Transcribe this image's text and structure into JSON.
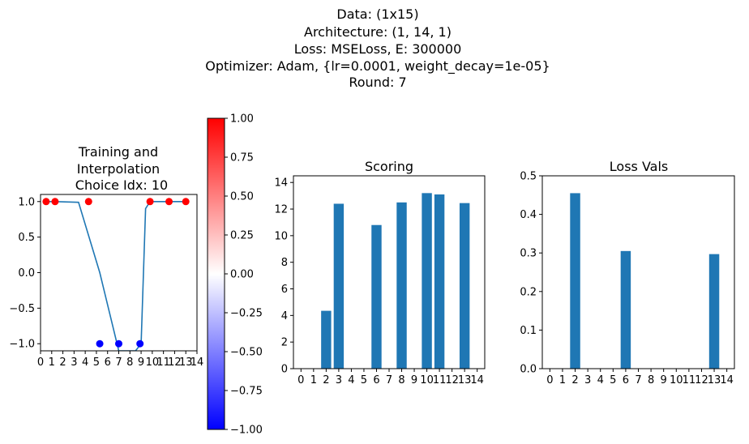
{
  "suptitle": [
    "Data: (1x15)",
    "Architecture: (1, 14, 1)",
    "Loss: MSELoss, E: 300000",
    "Optimizer: Adam, {lr=0.0001, weight_decay=1e-05}",
    "Round: 7"
  ],
  "colors": {
    "bar": "#1f77b4",
    "line": "#1f77b4",
    "cmap_low": "#0000ff",
    "cmap_mid": "#ffffff",
    "cmap_high": "#ff0000"
  },
  "chart_data": [
    {
      "type": "scatter",
      "title": [
        "Training and",
        "Interpolation",
        "Choice Idx: 10"
      ],
      "xlabel": "",
      "ylabel": "",
      "xlim": [
        0,
        14
      ],
      "ylim": [
        -1.1,
        1.1
      ],
      "xticks": [
        "0",
        "1",
        "2",
        "3",
        "4",
        "5",
        "6",
        "7",
        "8",
        "9",
        "10",
        "11",
        "12",
        "13",
        "14"
      ],
      "yticks": [
        "−1.0",
        "−0.5",
        "0.0",
        "0.5",
        "1.0"
      ],
      "ytick_values": [
        -1.0,
        -0.5,
        0.0,
        0.5,
        1.0
      ],
      "points": [
        {
          "x": 0.5,
          "y": 1.0
        },
        {
          "x": 1.3,
          "y": 1.0
        },
        {
          "x": 4.3,
          "y": 1.0
        },
        {
          "x": 5.3,
          "y": -1.0
        },
        {
          "x": 7.0,
          "y": -1.0
        },
        {
          "x": 8.9,
          "y": -1.0
        },
        {
          "x": 9.8,
          "y": 1.0
        },
        {
          "x": 11.5,
          "y": 1.0
        },
        {
          "x": 13.0,
          "y": 1.0
        }
      ],
      "line": {
        "x": [
          0.5,
          1.3,
          3.4,
          5.3,
          7.0,
          8.5,
          9.0,
          9.4,
          9.8,
          11.5,
          13.0
        ],
        "y": [
          1.0,
          1.0,
          0.99,
          0.0,
          -1.1,
          -1.1,
          -1.0,
          0.9,
          1.0,
          1.0,
          1.0
        ]
      },
      "grid": false,
      "colorbar": {
        "range": [
          -1.0,
          1.0
        ],
        "ticks": [
          "−1.00",
          "−0.75",
          "−0.50",
          "−0.25",
          "0.00",
          "0.25",
          "0.50",
          "0.75",
          "1.00"
        ],
        "tick_values": [
          -1.0,
          -0.75,
          -0.5,
          -0.25,
          0.0,
          0.25,
          0.5,
          0.75,
          1.0
        ]
      }
    },
    {
      "type": "bar",
      "title": "Scoring",
      "xlabel": "",
      "ylabel": "",
      "categories": [
        "0",
        "1",
        "2",
        "3",
        "4",
        "5",
        "6",
        "7",
        "8",
        "9",
        "10",
        "11",
        "12",
        "13",
        "14"
      ],
      "values": [
        0,
        0,
        4.35,
        12.4,
        0,
        0,
        10.8,
        0,
        12.5,
        0,
        13.2,
        13.1,
        0,
        12.45,
        0
      ],
      "ylim": [
        0,
        14.5
      ],
      "yticks": [
        "0",
        "2",
        "4",
        "6",
        "8",
        "10",
        "12",
        "14"
      ],
      "ytick_values": [
        0,
        2,
        4,
        6,
        8,
        10,
        12,
        14
      ],
      "grid": false
    },
    {
      "type": "bar",
      "title": "Loss Vals",
      "xlabel": "",
      "ylabel": "",
      "categories": [
        "0",
        "1",
        "2",
        "3",
        "4",
        "5",
        "6",
        "7",
        "8",
        "9",
        "10",
        "11",
        "12",
        "13",
        "14"
      ],
      "values": [
        0,
        0,
        0.455,
        0,
        0,
        0,
        0.305,
        0,
        0,
        0,
        0,
        0,
        0,
        0.297,
        0
      ],
      "ylim": [
        0,
        0.5
      ],
      "yticks": [
        "0.0",
        "0.1",
        "0.2",
        "0.3",
        "0.4",
        "0.5"
      ],
      "ytick_values": [
        0.0,
        0.1,
        0.2,
        0.3,
        0.4,
        0.5
      ],
      "grid": false
    }
  ]
}
